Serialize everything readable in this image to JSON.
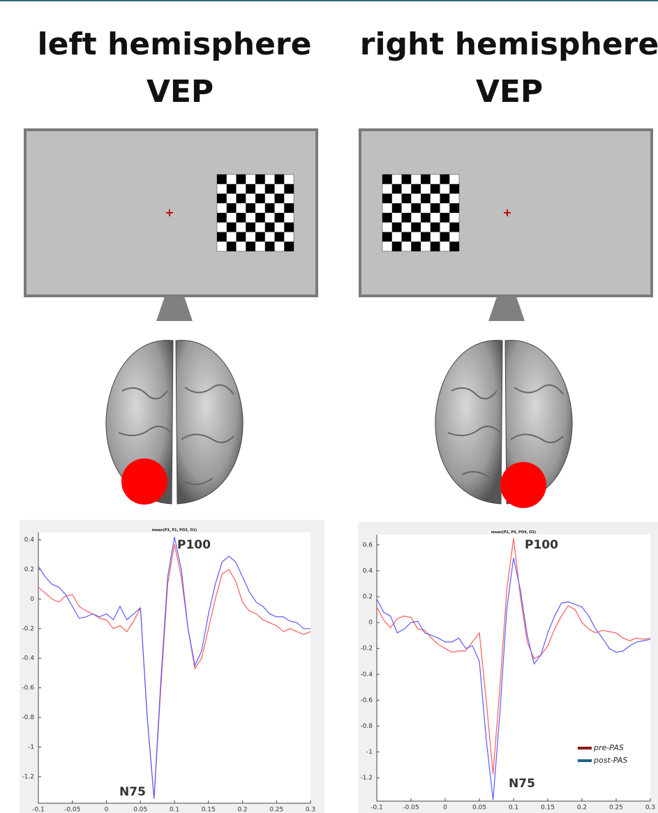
{
  "headings": [
    {
      "line1": "left hemisphere",
      "line2": "VEP"
    },
    {
      "line1": "right hemisphere",
      "line2": "VEP"
    }
  ],
  "chart_data": [
    {
      "type": "line",
      "title": "mean(P3, P1, PO3, O1)",
      "annotations": [
        "P100",
        "N75"
      ],
      "x": [
        -0.1,
        -0.09,
        -0.08,
        -0.07,
        -0.06,
        -0.05,
        -0.04,
        -0.03,
        -0.02,
        -0.01,
        0,
        0.01,
        0.02,
        0.03,
        0.04,
        0.05,
        0.06,
        0.07,
        0.08,
        0.09,
        0.1,
        0.11,
        0.12,
        0.13,
        0.14,
        0.15,
        0.16,
        0.17,
        0.18,
        0.19,
        0.2,
        0.21,
        0.22,
        0.23,
        0.24,
        0.25,
        0.26,
        0.27,
        0.28,
        0.29,
        0.3
      ],
      "series": [
        {
          "color": "#ff5a5a",
          "values": [
            0.08,
            0.04,
            0.0,
            -0.02,
            0.02,
            0.03,
            -0.05,
            -0.08,
            -0.1,
            -0.13,
            -0.14,
            -0.2,
            -0.18,
            -0.22,
            -0.15,
            -0.06,
            -0.8,
            -1.35,
            -0.6,
            0.1,
            0.37,
            0.15,
            -0.2,
            -0.47,
            -0.4,
            -0.2,
            0.0,
            0.17,
            0.2,
            0.12,
            -0.02,
            -0.08,
            -0.1,
            -0.14,
            -0.16,
            -0.18,
            -0.22,
            -0.2,
            -0.22,
            -0.24,
            -0.22
          ]
        },
        {
          "color": "#5a5aff",
          "values": [
            0.22,
            0.15,
            0.1,
            0.08,
            0.03,
            -0.05,
            -0.13,
            -0.12,
            -0.1,
            -0.12,
            -0.1,
            -0.14,
            -0.05,
            -0.14,
            -0.1,
            -0.06,
            -0.8,
            -1.35,
            -0.55,
            0.15,
            0.42,
            0.2,
            -0.2,
            -0.45,
            -0.35,
            -0.1,
            0.1,
            0.25,
            0.29,
            0.25,
            0.15,
            0.05,
            -0.02,
            -0.05,
            -0.1,
            -0.12,
            -0.12,
            -0.15,
            -0.16,
            -0.2,
            -0.2
          ]
        }
      ],
      "xlim": [
        -0.1,
        0.3
      ],
      "xticks": [
        -0.1,
        -0.05,
        0,
        0.05,
        0.1,
        0.15,
        0.2,
        0.25,
        0.3
      ],
      "ylim": [
        -1.38,
        0.45
      ],
      "yticks": [
        0.4,
        0.2,
        0,
        -0.2,
        -0.4,
        -0.6,
        -0.8,
        -1,
        -1.2
      ]
    },
    {
      "type": "line",
      "title": "mean(P2, P4, PO4, O2)",
      "annotations": [
        "P100",
        "N75"
      ],
      "x": [
        -0.1,
        -0.09,
        -0.08,
        -0.07,
        -0.06,
        -0.05,
        -0.04,
        -0.03,
        -0.02,
        -0.01,
        0,
        0.01,
        0.02,
        0.03,
        0.04,
        0.05,
        0.06,
        0.07,
        0.08,
        0.09,
        0.1,
        0.11,
        0.12,
        0.13,
        0.14,
        0.15,
        0.16,
        0.17,
        0.18,
        0.19,
        0.2,
        0.21,
        0.22,
        0.23,
        0.24,
        0.25,
        0.26,
        0.27,
        0.28,
        0.29,
        0.3
      ],
      "series": [
        {
          "name": "pre-PAS",
          "color": "#ff5a5a",
          "legend_color": "#8b1a1a",
          "values": [
            0.12,
            0.02,
            -0.04,
            0.03,
            0.05,
            0.04,
            -0.05,
            -0.06,
            -0.12,
            -0.17,
            -0.2,
            -0.23,
            -0.22,
            -0.22,
            -0.15,
            -0.08,
            -0.6,
            -1.17,
            -0.5,
            0.25,
            0.65,
            0.2,
            -0.15,
            -0.28,
            -0.25,
            -0.18,
            -0.05,
            0.05,
            0.13,
            0.1,
            0.0,
            -0.05,
            -0.08,
            -0.06,
            -0.07,
            -0.08,
            -0.12,
            -0.14,
            -0.12,
            -0.13,
            -0.12
          ]
        },
        {
          "name": "post-PAS",
          "color": "#5a5aff",
          "legend_color": "#1f5f8b",
          "values": [
            0.18,
            0.08,
            0.05,
            -0.08,
            -0.05,
            0.0,
            0.01,
            -0.08,
            -0.1,
            -0.12,
            -0.15,
            -0.15,
            -0.12,
            -0.2,
            -0.18,
            -0.3,
            -0.9,
            -1.37,
            -0.7,
            0.1,
            0.5,
            0.25,
            -0.1,
            -0.32,
            -0.25,
            -0.08,
            0.05,
            0.15,
            0.16,
            0.14,
            0.12,
            0.05,
            -0.05,
            -0.12,
            -0.2,
            -0.23,
            -0.22,
            -0.18,
            -0.15,
            -0.14,
            -0.13
          ]
        }
      ],
      "legend": "lower right",
      "xlim": [
        -0.1,
        0.3
      ],
      "xticks": [
        -0.1,
        -0.05,
        0,
        0.05,
        0.1,
        0.15,
        0.2,
        0.25,
        0.3
      ],
      "ylim": [
        -1.38,
        0.68
      ],
      "yticks": [
        0.6,
        0.4,
        0.2,
        0,
        -0.2,
        -0.4,
        -0.6,
        -0.8,
        -1,
        -1.2
      ]
    }
  ]
}
